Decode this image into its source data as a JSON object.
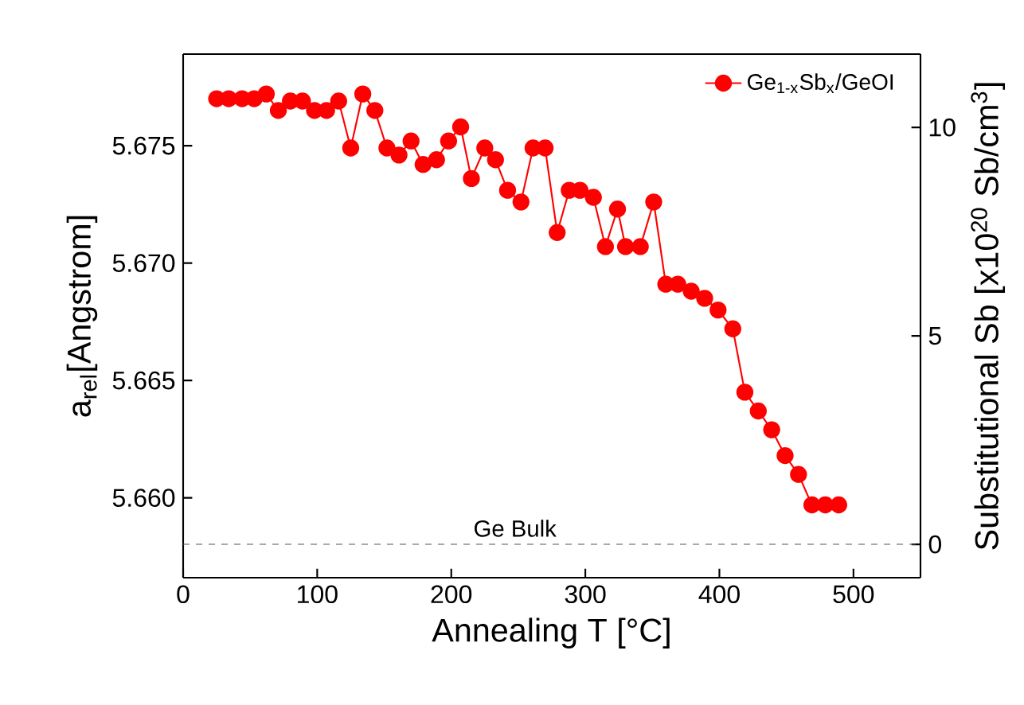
{
  "chart_data": {
    "type": "line",
    "xlabel": "Annealing T [°C]",
    "ylabel": "a$_{rel}$[Angstrom]",
    "y2label": "Substitutional Sb [x10$^{20}$ Sb/cm$^{3}$]",
    "xlim": [
      0,
      550
    ],
    "xticks": [
      0,
      100,
      200,
      300,
      400,
      500
    ],
    "ylim": [
      5.6566,
      5.6789
    ],
    "yticks": [
      {
        "value": 5.66,
        "label": "5.660"
      },
      5.665,
      {
        "value": 5.67,
        "label": "5.670"
      },
      5.675
    ],
    "y2lim": [
      -0.8,
      11.76
    ],
    "y2ticks": [
      0,
      5,
      10
    ],
    "x": [
      25,
      34,
      44,
      53,
      62,
      71,
      80,
      89,
      98,
      107,
      116,
      125,
      134,
      143,
      152,
      161,
      170,
      179,
      189,
      198,
      207,
      215,
      225,
      233,
      242,
      252,
      261,
      270,
      279,
      288,
      296,
      306,
      315,
      324,
      330,
      341,
      351,
      360,
      369,
      379,
      389,
      399,
      410,
      419,
      429,
      439,
      449,
      459,
      469,
      479,
      489
    ],
    "series": [
      {
        "name": "Ge$_{1-x}$Sb$_{x}$/GeOI",
        "color": "#ff0000",
        "values": [
          5.677,
          5.677,
          5.677,
          5.677,
          5.6772,
          5.6765,
          5.6769,
          5.6769,
          5.6765,
          5.6765,
          5.6769,
          5.6749,
          5.6772,
          5.6765,
          5.6749,
          5.6746,
          5.6752,
          5.6742,
          5.6744,
          5.6752,
          5.6758,
          5.6736,
          5.6749,
          5.6744,
          5.6731,
          5.6726,
          5.6749,
          5.6749,
          5.6713,
          5.6731,
          5.6731,
          5.6728,
          5.6707,
          5.6723,
          5.6707,
          5.6707,
          5.6726,
          5.6691,
          5.6691,
          5.6688,
          5.6685,
          5.668,
          5.6672,
          5.6645,
          5.6637,
          5.6629,
          5.6618,
          5.661,
          5.6597,
          5.6597,
          5.6597
        ]
      }
    ],
    "ref_lines": [
      {
        "axis": "y2",
        "value": 0,
        "label": "Ge Bulk",
        "color": "#555555",
        "line_style": "dashed"
      }
    ],
    "marker": "circle",
    "line_style": "solid",
    "legend": "top right",
    "grid": false
  }
}
